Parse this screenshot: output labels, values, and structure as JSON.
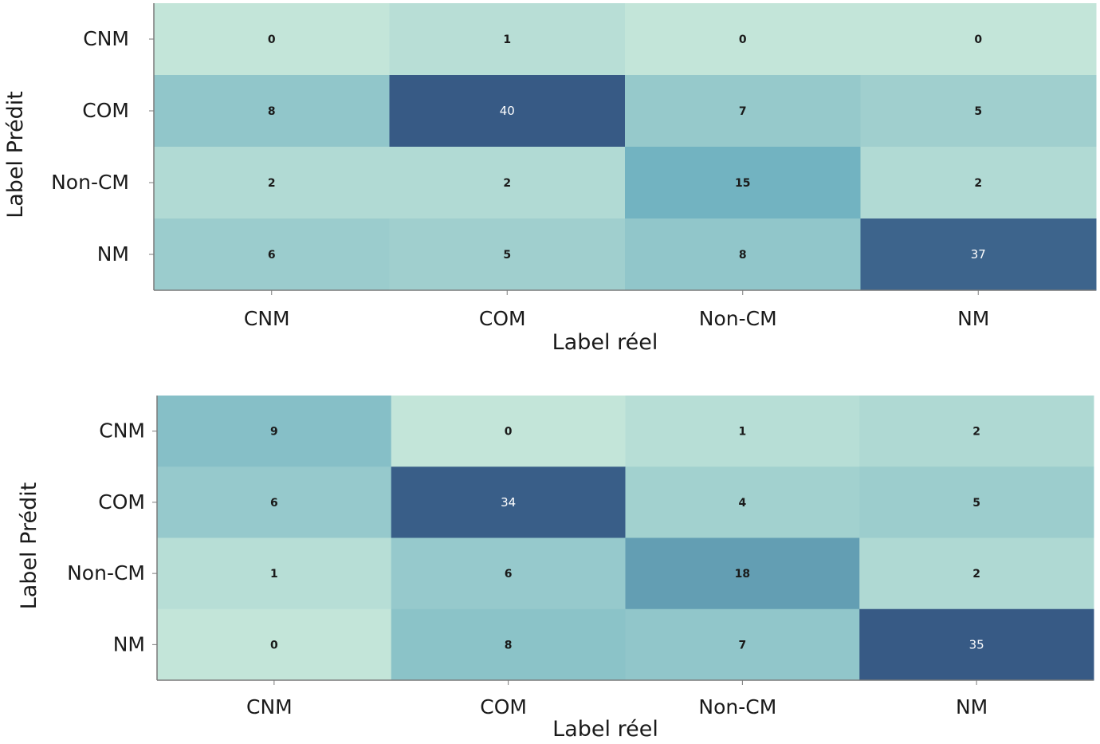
{
  "chart_data": [
    {
      "type": "heatmap",
      "xlabel": "Label réel",
      "ylabel": "Label Prédit",
      "x_categories": [
        "CNM",
        "COM",
        "Non-CM",
        "NM"
      ],
      "y_categories": [
        "CNM",
        "COM",
        "Non-CM",
        "NM"
      ],
      "values": [
        [
          0,
          1,
          0,
          0
        ],
        [
          8,
          40,
          7,
          5
        ],
        [
          2,
          2,
          15,
          2
        ],
        [
          6,
          5,
          8,
          37
        ]
      ],
      "color_range": [
        0,
        40
      ]
    },
    {
      "type": "heatmap",
      "xlabel": "Label réel",
      "ylabel": "Label Prédit",
      "x_categories": [
        "CNM",
        "COM",
        "Non-CM",
        "NM"
      ],
      "y_categories": [
        "CNM",
        "COM",
        "Non-CM",
        "NM"
      ],
      "values": [
        [
          9,
          0,
          1,
          2
        ],
        [
          6,
          34,
          4,
          5
        ],
        [
          1,
          6,
          18,
          2
        ],
        [
          0,
          8,
          7,
          35
        ]
      ],
      "color_range": [
        0,
        35
      ]
    }
  ],
  "colors": {
    "low": "#c3e5d9",
    "mid": "#6fb1c0",
    "high": "#375a85",
    "axis": "#7a7a7a"
  }
}
